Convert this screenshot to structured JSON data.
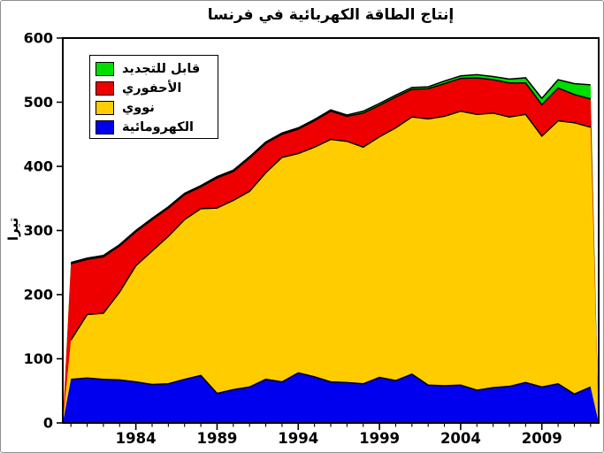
{
  "figure": {
    "title": "إنتاج الطاقة الكهربائية في فرنسا",
    "background": "#ffffff",
    "border_color": "#8f8f8f"
  },
  "chart_data": {
    "type": "area",
    "stacked": true,
    "title": "إنتاج الطاقة الكهربائية في فرنسا",
    "xlabel": "",
    "ylabel": "تيرا",
    "ylim": [
      0,
      600
    ],
    "xlim": [
      1979.5,
      2012.5
    ],
    "yticks": [
      0,
      100,
      200,
      300,
      400,
      500,
      600
    ],
    "xticks_major": [
      1984,
      1989,
      1994,
      1999,
      2004,
      2009
    ],
    "grid": false,
    "legend_position": "top-left",
    "frame_color": "#000000",
    "boundary_stroke": "#000000",
    "x": [
      1980,
      1981,
      1982,
      1983,
      1984,
      1985,
      1986,
      1987,
      1988,
      1989,
      1990,
      1991,
      1992,
      1993,
      1994,
      1995,
      1996,
      1997,
      1998,
      1999,
      2000,
      2001,
      2002,
      2003,
      2004,
      2005,
      2006,
      2007,
      2008,
      2009,
      2010,
      2011,
      2012
    ],
    "series": [
      {
        "name": "الكهرومائية",
        "color": "#0000ee",
        "values": [
          68,
          70,
          68,
          67,
          64,
          60,
          61,
          68,
          74,
          46,
          52,
          56,
          68,
          64,
          78,
          72,
          64,
          63,
          61,
          71,
          66,
          76,
          59,
          58,
          59,
          51,
          55,
          57,
          63,
          56,
          61,
          45,
          56
        ]
      },
      {
        "name": "نووي",
        "color": "#ffcc00",
        "values": [
          61,
          99,
          103,
          137,
          181,
          208,
          230,
          249,
          260,
          289,
          295,
          305,
          322,
          350,
          342,
          358,
          378,
          376,
          369,
          375,
          394,
          401,
          415,
          420,
          427,
          430,
          428,
          420,
          418,
          391,
          410,
          423,
          405
        ]
      },
      {
        "name": "الأحفوري",
        "color": "#ee0000",
        "values": [
          119,
          86,
          88,
          72,
          53,
          49,
          44,
          39,
          34,
          47,
          45,
          52,
          46,
          36,
          38,
          41,
          44,
          39,
          53,
          49,
          48,
          43,
          47,
          51,
          51,
          57,
          52,
          53,
          49,
          49,
          51,
          44,
          44
        ]
      },
      {
        "name": "قابل للتجديد",
        "color": "#00dd00",
        "values": [
          2,
          2,
          2,
          2,
          2,
          2,
          2,
          2,
          2,
          2,
          2,
          2,
          2,
          2,
          2,
          2,
          2,
          2,
          3,
          3,
          3,
          3,
          3,
          4,
          4,
          5,
          5,
          6,
          8,
          10,
          13,
          17,
          22
        ]
      }
    ]
  }
}
